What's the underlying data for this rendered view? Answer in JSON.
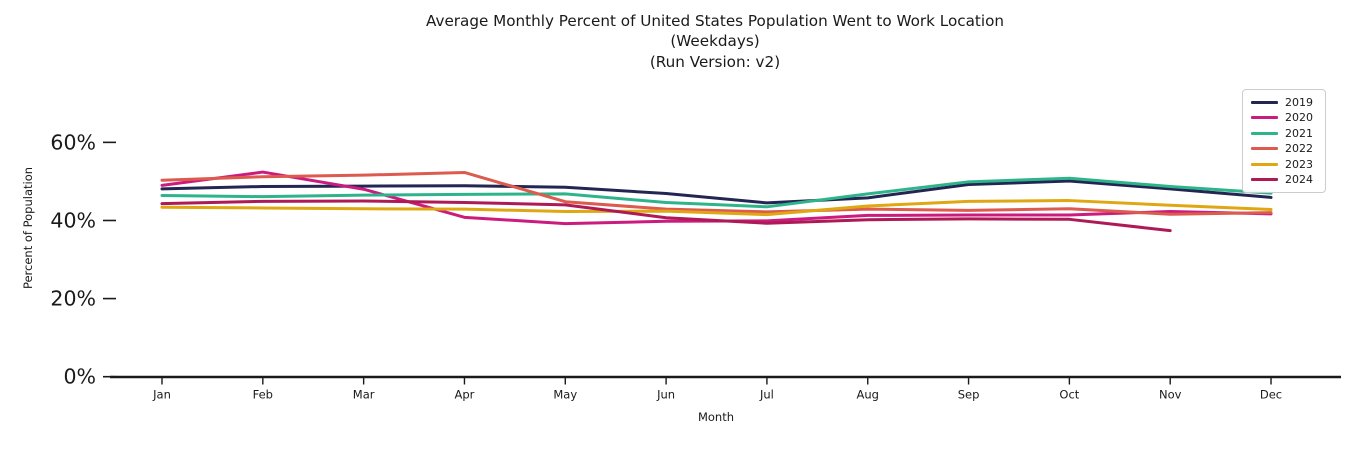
{
  "title": {
    "line1": "Average Monthly Percent of United States Population Went to Work Location",
    "line2": "(Weekdays)",
    "line3": "(Run Version: v2)"
  },
  "chart_data": {
    "type": "line",
    "title": "Average Monthly Percent of United States Population Went to Work Location (Weekdays) (Run Version: v2)",
    "xlabel": "Month",
    "ylabel": "Percent of Population",
    "categories": [
      "Jan",
      "Feb",
      "Mar",
      "Apr",
      "May",
      "Jun",
      "Jul",
      "Aug",
      "Sep",
      "Oct",
      "Nov",
      "Dec"
    ],
    "yticks": [
      {
        "value": 0,
        "label": "0%"
      },
      {
        "value": 20,
        "label": "20%"
      },
      {
        "value": 40,
        "label": "40%"
      },
      {
        "value": 60,
        "label": "60%"
      }
    ],
    "ylim": [
      0,
      65
    ],
    "grid": false,
    "legend_position": "upper right",
    "series": [
      {
        "name": "2019",
        "color": "#232552",
        "values": [
          48.1,
          48.7,
          48.8,
          48.9,
          48.5,
          46.9,
          44.5,
          45.8,
          49.2,
          50.1,
          48.1,
          45.9
        ]
      },
      {
        "name": "2020",
        "color": "#cb1b7e",
        "values": [
          49.0,
          52.4,
          48.0,
          40.8,
          39.2,
          39.8,
          39.9,
          41.3,
          41.4,
          41.4,
          42.3,
          41.7
        ]
      },
      {
        "name": "2021",
        "color": "#2eb48a",
        "values": [
          46.4,
          46.1,
          46.5,
          46.7,
          46.8,
          44.6,
          43.5,
          46.8,
          49.9,
          50.8,
          48.7,
          47.0
        ]
      },
      {
        "name": "2022",
        "color": "#dd5a4e",
        "values": [
          50.3,
          51.2,
          51.6,
          52.3,
          44.8,
          42.9,
          42.2,
          42.9,
          42.6,
          43.0,
          41.6,
          42.0
        ]
      },
      {
        "name": "2023",
        "color": "#dfa812",
        "values": [
          43.4,
          43.2,
          43.0,
          42.9,
          42.3,
          42.4,
          41.5,
          43.7,
          44.9,
          45.1,
          43.9,
          42.8
        ]
      },
      {
        "name": "2024",
        "color": "#ad1a56",
        "values": [
          44.3,
          44.9,
          45.0,
          44.6,
          44.0,
          40.7,
          39.3,
          40.2,
          40.4,
          40.3,
          37.4,
          null
        ]
      }
    ]
  }
}
